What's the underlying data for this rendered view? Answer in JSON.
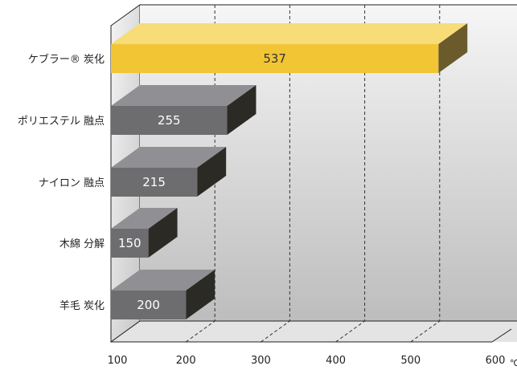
{
  "chart_data": {
    "type": "bar",
    "orientation": "horizontal",
    "categories": [
      "ケブラー® 炭化",
      "ポリエステル 融点",
      "ナイロン 融点",
      "木綿 分解",
      "羊毛 炭化"
    ],
    "values": [
      537,
      255,
      215,
      150,
      200
    ],
    "value_labels": [
      "537",
      "255",
      "215",
      "150",
      "200"
    ],
    "x_ticks": [
      "100",
      "200",
      "300",
      "400",
      "500",
      "600"
    ],
    "xlim": [
      100,
      600
    ],
    "x_unit": "℃",
    "title": "",
    "xlabel": "",
    "ylabel": "",
    "grid": "vertical-dashed",
    "colors": {
      "highlight_front": "#f2c535",
      "highlight_top": "#f7dc78",
      "highlight_side": "#6b5a2c",
      "bar_front": "#6d6d70",
      "bar_top": "#909094",
      "bar_side": "#2b2a25",
      "highlight_text": "#333333",
      "bar_text": "#ffffff"
    },
    "highlight_index": 0
  }
}
